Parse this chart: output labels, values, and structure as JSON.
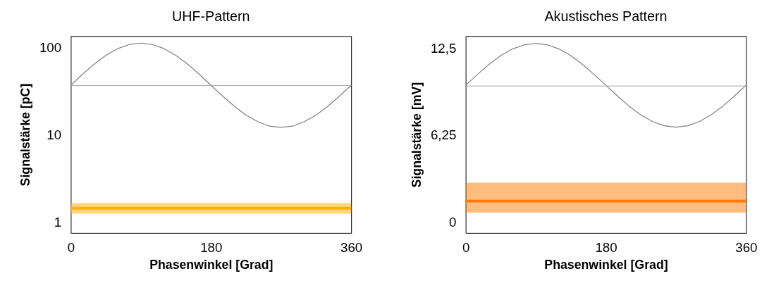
{
  "chart_data": [
    {
      "type": "line",
      "title": "UHF-Pattern",
      "xlabel": "Phasenwinkel [Grad]",
      "ylabel": "Signalstärke [pC]",
      "log": "y",
      "grid": false,
      "marker": "none",
      "xlim": [
        0,
        360
      ],
      "xticks": [
        0,
        180,
        360
      ],
      "ylim": [
        0.75,
        136
      ],
      "yticks": [
        1,
        10,
        100
      ],
      "ref_lines": [
        {
          "axis": "y",
          "value": 36.8,
          "color": "#a6a6a6"
        }
      ],
      "series": [
        {
          "color": "#7f7f7f",
          "x": [
            0,
            15,
            30,
            45,
            60,
            75,
            90,
            105,
            120,
            135,
            150,
            165,
            180,
            195,
            210,
            225,
            240,
            255,
            270,
            285,
            300,
            315,
            330,
            345,
            360
          ],
          "values": [
            37,
            49.6,
            64.9,
            81.7,
            97.5,
            109,
            113,
            109,
            97.5,
            81.7,
            64.9,
            49.6,
            37,
            27.9,
            21.3,
            16.9,
            14.2,
            12.6,
            12.2,
            12.6,
            14.2,
            16.9,
            21.3,
            27.9,
            37
          ]
        },
        {
          "color": "#ffb000",
          "x": [
            0,
            90,
            180,
            270,
            360
          ],
          "values": [
            1.44,
            1.44,
            1.44,
            1.44,
            1.44
          ],
          "lower": [
            1.25,
            1.25,
            1.25,
            1.25,
            1.25
          ],
          "upper": [
            1.65,
            1.65,
            1.65,
            1.65,
            1.65
          ]
        }
      ]
    },
    {
      "type": "line",
      "title": "Akustisches Pattern",
      "xlabel": "Phasenwinkel [Grad]",
      "ylabel": "Signalstärke [mV]",
      "grid": false,
      "marker": "none",
      "xlim": [
        0,
        360
      ],
      "xticks": [
        0,
        180,
        360
      ],
      "ylim": [
        -0.8,
        13.4
      ],
      "yticks": [
        0,
        {
          "value": 6.25,
          "label": "6,25"
        },
        {
          "value": 12.5,
          "label": "12,5"
        }
      ],
      "ref_lines": [
        {
          "axis": "y",
          "value": 9.8,
          "color": "#a6a6a6"
        }
      ],
      "series": [
        {
          "color": "#7f7f7f",
          "x": [
            0,
            15,
            30,
            45,
            60,
            75,
            90,
            105,
            120,
            135,
            150,
            165,
            180,
            195,
            210,
            225,
            240,
            255,
            270,
            285,
            300,
            315,
            330,
            345,
            360
          ],
          "values": [
            9.85,
            10.63,
            11.36,
            11.99,
            12.47,
            12.77,
            12.87,
            12.77,
            12.47,
            11.99,
            11.36,
            10.63,
            9.85,
            9.07,
            8.34,
            7.71,
            7.23,
            6.93,
            6.83,
            6.93,
            7.23,
            7.71,
            8.34,
            9.07,
            9.85
          ]
        },
        {
          "color": "#ff7a00",
          "x": [
            0,
            90,
            180,
            270,
            360
          ],
          "values": [
            1.5,
            1.5,
            1.5,
            1.5,
            1.5
          ],
          "lower": [
            0.67,
            0.67,
            0.67,
            0.67,
            0.67
          ],
          "upper": [
            2.83,
            2.83,
            2.83,
            2.83,
            2.83
          ]
        }
      ]
    }
  ]
}
